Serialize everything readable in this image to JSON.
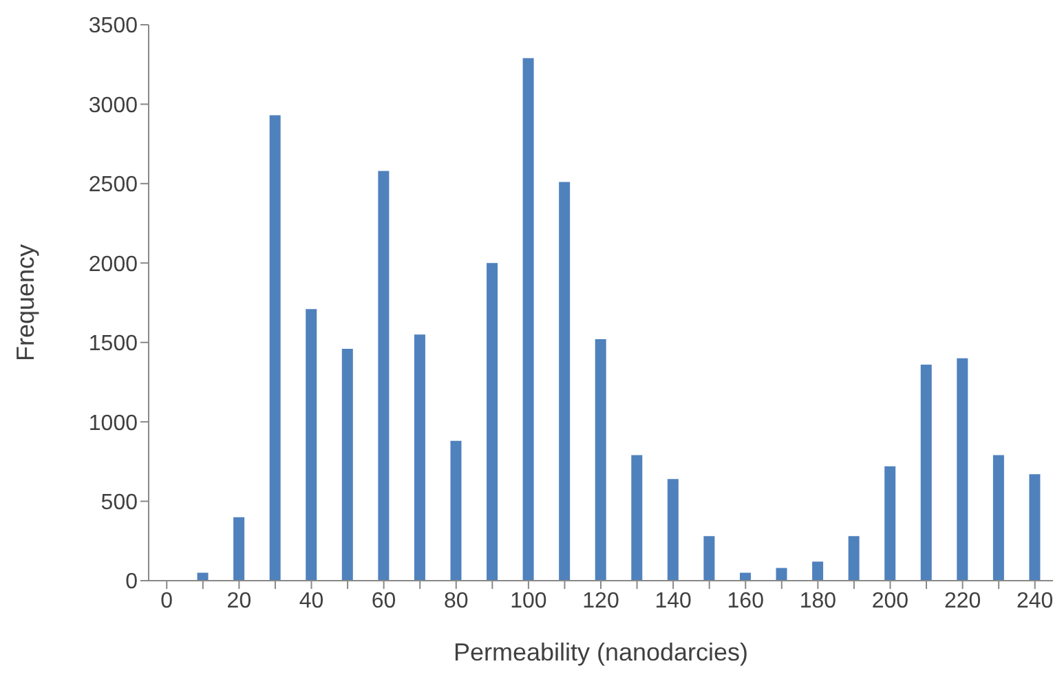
{
  "chart_data": {
    "type": "bar",
    "xlabel": "Permeability (nanodarcies)",
    "ylabel": "Frequency",
    "categories": [
      "0",
      null,
      "20",
      null,
      "40",
      null,
      "60",
      null,
      "80",
      null,
      "100",
      null,
      "120",
      null,
      "140",
      null,
      "160",
      null,
      "180",
      null,
      "200",
      null,
      "220",
      null,
      "240"
    ],
    "values": [
      0,
      50,
      400,
      2930,
      1710,
      1460,
      2580,
      1550,
      880,
      2000,
      3290,
      2510,
      1520,
      790,
      640,
      280,
      50,
      80,
      120,
      280,
      720,
      1360,
      1400,
      790,
      670
    ],
    "color": "#4f81bd",
    "ylim": [
      0,
      3500
    ],
    "yticks": [
      0,
      500,
      1000,
      1500,
      2000,
      2500,
      3000,
      3500
    ],
    "grid": false,
    "legend": false
  }
}
